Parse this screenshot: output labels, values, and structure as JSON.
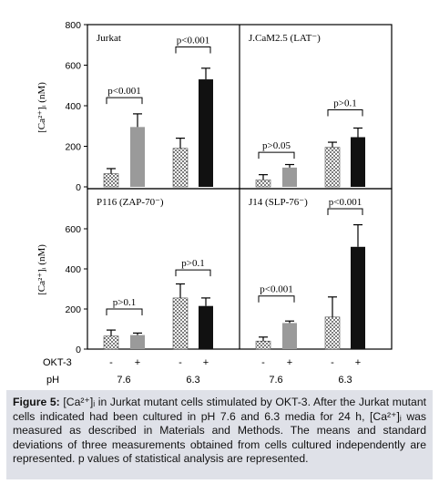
{
  "figure": {
    "y_axis_label": "[Ca²⁺]ᵢ (nM)",
    "okt_row_label": "OKT-3",
    "ph_row_label": "pH",
    "okt_values": [
      "-",
      "+",
      "-",
      "+",
      "-",
      "+",
      "-",
      "+"
    ],
    "ph_values": [
      "7.6",
      "6.3",
      "7.6",
      "6.3"
    ],
    "colors": {
      "hatched": "#d8d8d8",
      "gray": "#9a9a9a",
      "black": "#111111"
    }
  },
  "chart_data": [
    {
      "type": "bar",
      "panel": "top-left",
      "title": "Jurkat",
      "categories": [
        "pH 7.6 / OKT-3 -",
        "pH 7.6 / OKT-3 +",
        "pH 6.3 / OKT-3 -",
        "pH 6.3 / OKT-3 +"
      ],
      "values": [
        65,
        295,
        190,
        530
      ],
      "errors": [
        25,
        65,
        50,
        55
      ],
      "styles": [
        "hatched",
        "gray",
        "hatched",
        "black"
      ],
      "annotations": [
        {
          "text": "p<0.001",
          "bars": [
            0,
            1
          ],
          "y": 440
        },
        {
          "text": "p<0.001",
          "bars": [
            2,
            3
          ],
          "y": 690
        }
      ],
      "ylim": [
        0,
        800
      ],
      "yticks": [
        0,
        200,
        400,
        600,
        800
      ]
    },
    {
      "type": "bar",
      "panel": "top-right",
      "title": "J.CaM2.5 (LAT⁻)",
      "categories": [
        "pH 7.6 / OKT-3 -",
        "pH 7.6 / OKT-3 +",
        "pH 6.3 / OKT-3 -",
        "pH 6.3 / OKT-3 +"
      ],
      "values": [
        35,
        95,
        195,
        245
      ],
      "errors": [
        25,
        15,
        25,
        45
      ],
      "styles": [
        "hatched",
        "gray",
        "hatched",
        "black"
      ],
      "annotations": [
        {
          "text": "p>0.05",
          "bars": [
            0,
            1
          ],
          "y": 170
        },
        {
          "text": "p>0.1",
          "bars": [
            2,
            3
          ],
          "y": 380
        }
      ],
      "ylim": [
        0,
        800
      ],
      "yticks": [
        0,
        200,
        400,
        600,
        800
      ]
    },
    {
      "type": "bar",
      "panel": "bottom-left",
      "title": "P116 (ZAP-70⁻)",
      "categories": [
        "pH 7.6 / OKT-3 -",
        "pH 7.6 / OKT-3 +",
        "pH 6.3 / OKT-3 -",
        "pH 6.3 / OKT-3 +"
      ],
      "values": [
        65,
        70,
        255,
        215
      ],
      "errors": [
        30,
        10,
        70,
        40
      ],
      "styles": [
        "hatched",
        "gray",
        "hatched",
        "black"
      ],
      "annotations": [
        {
          "text": "p>0.1",
          "bars": [
            0,
            1
          ],
          "y": 200
        },
        {
          "text": "p>0.1",
          "bars": [
            2,
            3
          ],
          "y": 395
        }
      ],
      "ylim": [
        0,
        800
      ],
      "yticks": [
        0,
        200,
        400,
        600
      ]
    },
    {
      "type": "bar",
      "panel": "bottom-right",
      "title": "J14 (SLP-76⁻)",
      "categories": [
        "pH 7.6 / OKT-3 -",
        "pH 7.6 / OKT-3 +",
        "pH 6.3 / OKT-3 -",
        "pH 6.3 / OKT-3 +"
      ],
      "values": [
        40,
        130,
        160,
        510
      ],
      "errors": [
        20,
        10,
        100,
        110
      ],
      "styles": [
        "hatched",
        "gray",
        "hatched",
        "black"
      ],
      "annotations": [
        {
          "text": "p<0.001",
          "bars": [
            0,
            1
          ],
          "y": 265
        },
        {
          "text": "p<0.001",
          "bars": [
            2,
            3
          ],
          "y": 700
        }
      ],
      "ylim": [
        0,
        800
      ],
      "yticks": [
        0,
        200,
        400,
        600,
        800
      ]
    }
  ],
  "caption": {
    "label": "Figure 5:",
    "text": " [Ca²⁺]ᵢ in Jurkat mutant cells stimulated by OKT-3. After the Jurkat mutant cells indicated had been cultured in pH 7.6 and 6.3 media for 24 h, [Ca²⁺]ᵢ was measured as described in Materials and Methods. The means and standard deviations of three measurements obtained from cells cultured independently are represented. p values of statistical analysis are represented."
  }
}
